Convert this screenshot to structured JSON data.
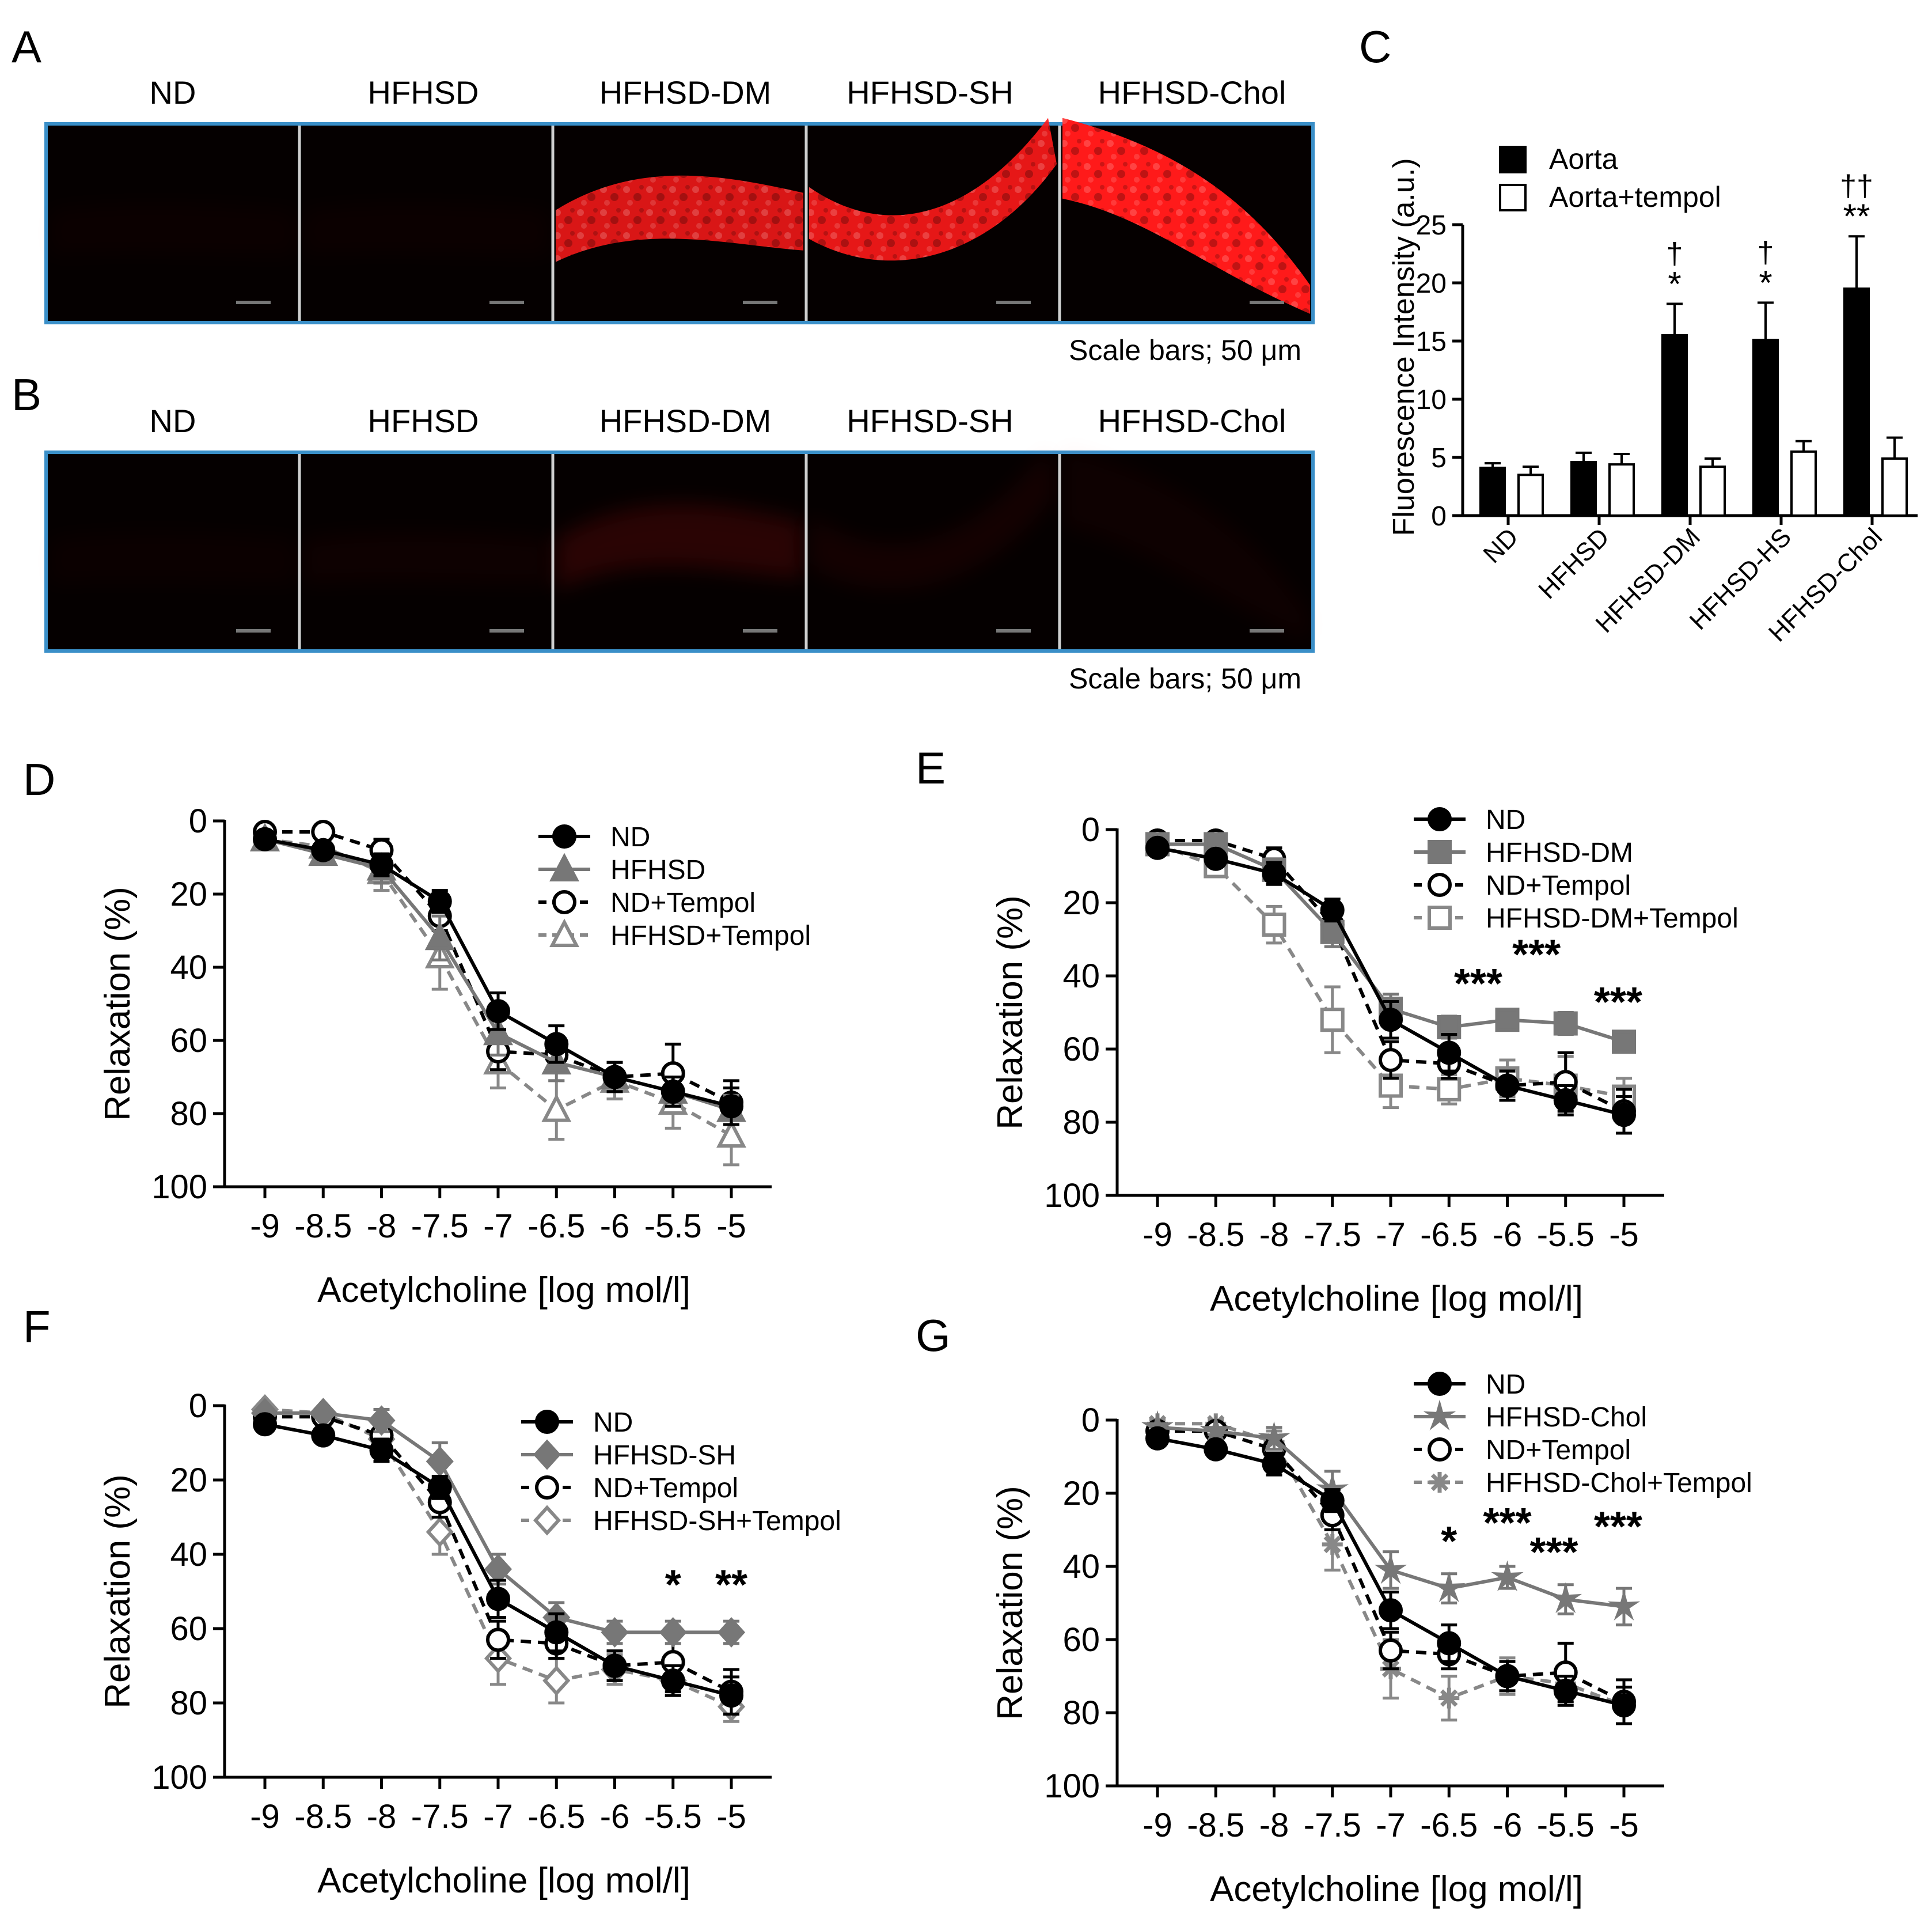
{
  "figure": {
    "panel_labels": [
      "A",
      "B",
      "C",
      "D",
      "E",
      "F",
      "G"
    ],
    "microscopy": {
      "group_labels": [
        "ND",
        "HFHSD",
        "HFHSD-DM",
        "HFHSD-SH",
        "HFHSD-Chol"
      ],
      "scale_text": "Scale bars; 50 μm",
      "panel_a_signal": [
        0.02,
        0.02,
        0.85,
        0.9,
        1.0
      ],
      "panel_b_signal": [
        0.02,
        0.03,
        0.12,
        0.05,
        0.03
      ],
      "signal_color": "#ff1a1a",
      "frame_color": "#3a8fc8"
    }
  },
  "chart_data": [
    {
      "id": "C",
      "type": "bar",
      "title": "",
      "xlabel": "",
      "ylabel": "Fluorescence Intensity (a.u.)",
      "ylim": [
        0,
        25
      ],
      "yticks": [
        "0",
        "5",
        "10",
        "15",
        "20",
        "25"
      ],
      "categories": [
        "ND",
        "HFHSD",
        "HFHSD-DM",
        "HFHSD-HS",
        "HFHSD-Chol"
      ],
      "series": [
        {
          "name": "Aorta",
          "color": "#000000",
          "values": [
            4.1,
            4.6,
            15.5,
            15.1,
            19.5
          ],
          "errors": [
            0.4,
            0.8,
            2.7,
            3.2,
            4.5
          ]
        },
        {
          "name": "Aorta+tempol",
          "color": "#ffffff",
          "values": [
            3.5,
            4.4,
            4.2,
            5.5,
            4.9
          ],
          "errors": [
            0.7,
            0.9,
            0.7,
            0.9,
            1.8
          ]
        }
      ],
      "annotations": [
        {
          "category": 2,
          "lines": [
            "†",
            "*"
          ]
        },
        {
          "category": 3,
          "lines": [
            "†",
            "*"
          ]
        },
        {
          "category": 4,
          "lines": [
            "††",
            "**"
          ]
        }
      ]
    },
    {
      "id": "D",
      "type": "line",
      "xlabel": "Acetylcholine [log mol/l]",
      "ylabel": "Relaxation (%)",
      "ylim": [
        0,
        100
      ],
      "yticks": [
        "0",
        "20",
        "40",
        "60",
        "80",
        "100"
      ],
      "x": [
        -9,
        -8.5,
        -8,
        -7.5,
        -7,
        -6.5,
        -6,
        -5.5,
        -5
      ],
      "xtick_labels": [
        "-9",
        "-8.5",
        "-8",
        "-7.5",
        "-7",
        "-6.5",
        "-6",
        "-5.5",
        "-5"
      ],
      "series": [
        {
          "name": "ND",
          "marker": "circle",
          "fill": "#000000",
          "color": "#000000",
          "dashed": false,
          "values": [
            5,
            8,
            12,
            22,
            52,
            61,
            70,
            74,
            78
          ],
          "errors": [
            1,
            2,
            3,
            3,
            5,
            5,
            4,
            4,
            5
          ]
        },
        {
          "name": "HFHSD",
          "marker": "triangle",
          "fill": "#777777",
          "color": "#777777",
          "dashed": false,
          "values": [
            5,
            9,
            13,
            32,
            58,
            66,
            70,
            74,
            79
          ],
          "errors": [
            1,
            2,
            4,
            6,
            6,
            5,
            4,
            4,
            4
          ]
        },
        {
          "name": "ND+Tempol",
          "marker": "circle",
          "fill": "#ffffff",
          "color": "#000000",
          "dashed": true,
          "values": [
            3,
            3,
            8,
            26,
            63,
            64,
            70,
            69,
            77
          ],
          "errors": [
            1,
            1,
            3,
            4,
            5,
            4,
            4,
            8,
            6
          ]
        },
        {
          "name": "HFHSD+Tempol",
          "marker": "triangle",
          "fill": "#ffffff",
          "color": "#888888",
          "dashed": true,
          "values": [
            5,
            7,
            14,
            37,
            66,
            79,
            71,
            77,
            86
          ],
          "errors": [
            1,
            2,
            5,
            9,
            7,
            8,
            5,
            7,
            8
          ]
        }
      ],
      "annotations": []
    },
    {
      "id": "E",
      "type": "line",
      "xlabel": "Acetylcholine [log mol/l]",
      "ylabel": "Relaxation (%)",
      "ylim": [
        0,
        100
      ],
      "yticks": [
        "0",
        "20",
        "40",
        "60",
        "80",
        "100"
      ],
      "x": [
        -9,
        -8.5,
        -8,
        -7.5,
        -7,
        -6.5,
        -6,
        -5.5,
        -5
      ],
      "xtick_labels": [
        "-9",
        "-8.5",
        "-8",
        "-7.5",
        "-7",
        "-6.5",
        "-6",
        "-5.5",
        "-5"
      ],
      "series": [
        {
          "name": "ND",
          "marker": "circle",
          "fill": "#000000",
          "color": "#000000",
          "dashed": false,
          "values": [
            5,
            8,
            12,
            22,
            52,
            61,
            70,
            74,
            78
          ],
          "errors": [
            1,
            2,
            3,
            3,
            5,
            5,
            4,
            4,
            5
          ]
        },
        {
          "name": "HFHSD-DM",
          "marker": "square",
          "fill": "#777777",
          "color": "#777777",
          "dashed": false,
          "values": [
            4,
            4,
            11,
            28,
            49,
            54,
            52,
            53,
            58
          ],
          "errors": [
            1,
            1,
            3,
            4,
            4,
            3,
            2,
            3,
            2
          ]
        },
        {
          "name": "ND+Tempol",
          "marker": "circle",
          "fill": "#ffffff",
          "color": "#000000",
          "dashed": true,
          "values": [
            3,
            3,
            8,
            26,
            63,
            64,
            70,
            69,
            77
          ],
          "errors": [
            1,
            1,
            3,
            4,
            5,
            4,
            4,
            8,
            6
          ]
        },
        {
          "name": "HFHSD-DM+Tempol",
          "marker": "square",
          "fill": "#ffffff",
          "color": "#888888",
          "dashed": true,
          "values": [
            4,
            10,
            26,
            52,
            70,
            71,
            68,
            70,
            73
          ],
          "errors": [
            1,
            2,
            5,
            9,
            6,
            4,
            5,
            8,
            5
          ]
        }
      ],
      "annotations": [
        {
          "x": -6.25,
          "y": 46,
          "text": "***"
        },
        {
          "x": -5.75,
          "y": 38,
          "text": "***"
        },
        {
          "x": -5.05,
          "y": 51,
          "text": "***"
        }
      ]
    },
    {
      "id": "F",
      "type": "line",
      "xlabel": "Acetylcholine [log mol/l]",
      "ylabel": "Relaxation (%)",
      "ylim": [
        0,
        100
      ],
      "yticks": [
        "0",
        "20",
        "40",
        "60",
        "80",
        "100"
      ],
      "x": [
        -9,
        -8.5,
        -8,
        -7.5,
        -7,
        -6.5,
        -6,
        -5.5,
        -5
      ],
      "xtick_labels": [
        "-9",
        "-8.5",
        "-8",
        "-7.5",
        "-7",
        "-6.5",
        "-6",
        "-5.5",
        "-5"
      ],
      "series": [
        {
          "name": "ND",
          "marker": "circle",
          "fill": "#000000",
          "color": "#000000",
          "dashed": false,
          "values": [
            5,
            8,
            12,
            22,
            52,
            61,
            70,
            74,
            78
          ],
          "errors": [
            1,
            2,
            3,
            3,
            5,
            5,
            4,
            4,
            5
          ]
        },
        {
          "name": "HFHSD-SH",
          "marker": "diamond",
          "fill": "#777777",
          "color": "#777777",
          "dashed": false,
          "values": [
            2,
            2,
            4,
            15,
            44,
            57,
            61,
            61,
            61
          ],
          "errors": [
            1,
            1,
            3,
            5,
            4,
            4,
            3,
            3,
            3
          ]
        },
        {
          "name": "ND+Tempol",
          "marker": "circle",
          "fill": "#ffffff",
          "color": "#000000",
          "dashed": true,
          "values": [
            3,
            3,
            8,
            26,
            63,
            64,
            70,
            69,
            77
          ],
          "errors": [
            1,
            1,
            3,
            4,
            5,
            4,
            4,
            8,
            6
          ]
        },
        {
          "name": "HFHSD-SH+Tempol",
          "marker": "diamond",
          "fill": "#ffffff",
          "color": "#888888",
          "dashed": true,
          "values": [
            1,
            2,
            9,
            34,
            68,
            74,
            71,
            74,
            81
          ],
          "errors": [
            1,
            1,
            3,
            6,
            7,
            6,
            4,
            4,
            4
          ]
        }
      ],
      "annotations": [
        {
          "x": -5.5,
          "y": 52,
          "text": "*"
        },
        {
          "x": -5.0,
          "y": 52,
          "text": "**"
        }
      ]
    },
    {
      "id": "G",
      "type": "line",
      "xlabel": "Acetylcholine [log mol/l]",
      "ylabel": "Relaxation (%)",
      "ylim": [
        0,
        100
      ],
      "yticks": [
        "0",
        "20",
        "40",
        "60",
        "80",
        "100"
      ],
      "x": [
        -9,
        -8.5,
        -8,
        -7.5,
        -7,
        -6.5,
        -6,
        -5.5,
        -5
      ],
      "xtick_labels": [
        "-9",
        "-8.5",
        "-8",
        "-7.5",
        "-7",
        "-6.5",
        "-6",
        "-5.5",
        "-5"
      ],
      "series": [
        {
          "name": "ND",
          "marker": "circle",
          "fill": "#000000",
          "color": "#000000",
          "dashed": false,
          "values": [
            5,
            8,
            12,
            22,
            52,
            61,
            70,
            74,
            78
          ],
          "errors": [
            1,
            2,
            3,
            3,
            5,
            5,
            4,
            4,
            5
          ]
        },
        {
          "name": "HFHSD-Chol",
          "marker": "star",
          "fill": "#777777",
          "color": "#777777",
          "dashed": false,
          "values": [
            2,
            3,
            5,
            19,
            41,
            46,
            43,
            49,
            51
          ],
          "errors": [
            1,
            1,
            3,
            5,
            5,
            4,
            3,
            4,
            5
          ]
        },
        {
          "name": "ND+Tempol",
          "marker": "circle",
          "fill": "#ffffff",
          "color": "#000000",
          "dashed": true,
          "values": [
            3,
            3,
            8,
            26,
            63,
            64,
            70,
            69,
            77
          ],
          "errors": [
            1,
            1,
            3,
            4,
            5,
            4,
            4,
            8,
            6
          ]
        },
        {
          "name": "HFHSD-Chol+Tempol",
          "marker": "asterisk",
          "fill": "#888888",
          "color": "#888888",
          "dashed": true,
          "values": [
            1,
            1,
            6,
            34,
            68,
            76,
            70,
            72,
            78
          ],
          "errors": [
            1,
            1,
            3,
            7,
            8,
            6,
            5,
            4,
            5
          ]
        }
      ],
      "annotations": [
        {
          "x": -6.5,
          "y": 37,
          "text": "*"
        },
        {
          "x": -6.0,
          "y": 32,
          "text": "***"
        },
        {
          "x": -5.6,
          "y": 40,
          "text": "***"
        },
        {
          "x": -5.05,
          "y": 33,
          "text": "***"
        }
      ]
    }
  ]
}
